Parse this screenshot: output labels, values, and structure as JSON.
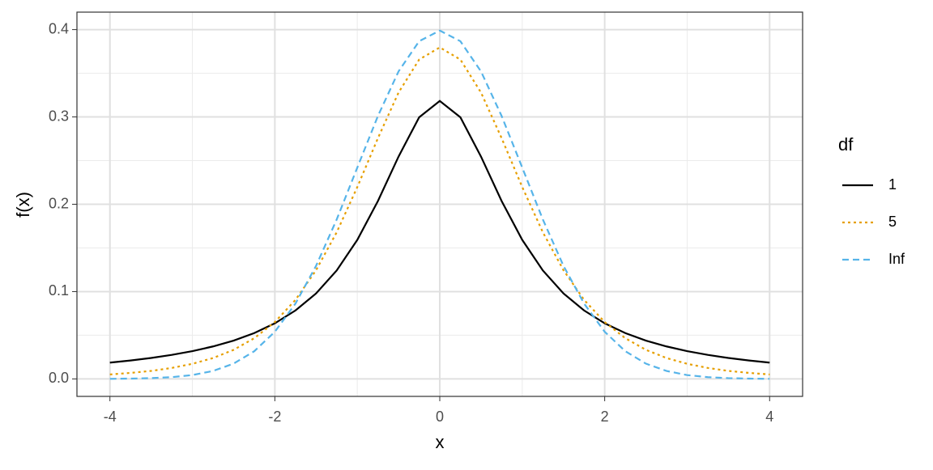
{
  "chart_data": {
    "type": "line",
    "x_label": "x",
    "y_label": "f(x)",
    "legend_title": "df",
    "legend_position": "right",
    "x": [
      -4,
      -3.75,
      -3.5,
      -3.25,
      -3,
      -2.75,
      -2.5,
      -2.25,
      -2,
      -1.75,
      -1.5,
      -1.25,
      -1,
      -0.75,
      -0.5,
      -0.25,
      0,
      0.25,
      0.5,
      0.75,
      1,
      1.25,
      1.5,
      1.75,
      2,
      2.25,
      2.5,
      2.75,
      3,
      3.25,
      3.5,
      3.75,
      4
    ],
    "series": [
      {
        "name": "1",
        "color": "#000000",
        "dash": "solid",
        "values": [
          0.0187,
          0.0211,
          0.024,
          0.0275,
          0.0318,
          0.0372,
          0.0439,
          0.0525,
          0.0637,
          0.0784,
          0.0979,
          0.1242,
          0.1592,
          0.2037,
          0.2546,
          0.2996,
          0.3183,
          0.2996,
          0.2546,
          0.2037,
          0.1592,
          0.1242,
          0.0979,
          0.0784,
          0.0637,
          0.0525,
          0.0439,
          0.0372,
          0.0318,
          0.0275,
          0.024,
          0.0211,
          0.0187
        ]
      },
      {
        "name": "5",
        "color": "#E69F00",
        "dash": "dotted",
        "values": [
          0.0051,
          0.0069,
          0.0092,
          0.0126,
          0.0173,
          0.0239,
          0.0333,
          0.0466,
          0.0651,
          0.0905,
          0.1245,
          0.1679,
          0.2197,
          0.2757,
          0.3279,
          0.3657,
          0.3796,
          0.3657,
          0.3279,
          0.2757,
          0.2197,
          0.1679,
          0.1245,
          0.0905,
          0.0651,
          0.0466,
          0.0333,
          0.0239,
          0.0173,
          0.0126,
          0.0092,
          0.0069,
          0.0051
        ]
      },
      {
        "name": "Inf",
        "color": "#56B4E9",
        "dash": "dashed",
        "values": [
          0.0001,
          0.0004,
          0.0009,
          0.002,
          0.0044,
          0.0091,
          0.0175,
          0.0317,
          0.054,
          0.0863,
          0.1295,
          0.1826,
          0.242,
          0.3011,
          0.3521,
          0.3867,
          0.3989,
          0.3867,
          0.3521,
          0.3011,
          0.242,
          0.1826,
          0.1295,
          0.0863,
          0.054,
          0.0317,
          0.0175,
          0.0091,
          0.0044,
          0.002,
          0.0009,
          0.0004,
          0.0001
        ]
      }
    ],
    "xlim": [
      -4.4,
      4.4
    ],
    "ylim": [
      -0.02,
      0.42
    ],
    "xticks": [
      -4,
      -2,
      0,
      2,
      4
    ],
    "yticks": [
      {
        "value": 0,
        "label": "0.0"
      },
      0.1,
      0.2,
      0.3,
      0.4
    ],
    "x_minor_ticks": [
      -3,
      -1,
      1,
      3
    ],
    "y_minor_ticks": [
      0.05,
      0.15,
      0.25,
      0.35
    ],
    "grid": true
  }
}
